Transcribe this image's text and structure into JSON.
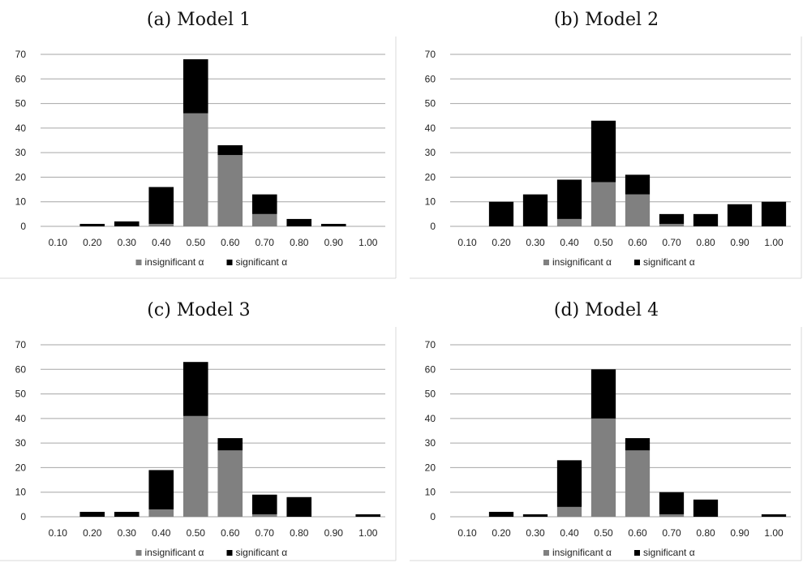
{
  "colors": {
    "insignificant": "#808080",
    "significant": "#000000",
    "grid": "#a6a6a6",
    "border": "#d9d9d9"
  },
  "legend": {
    "insignificant": "insignificant α",
    "significant": "significant α"
  },
  "chart_data": [
    {
      "type": "bar",
      "title": "(a) Model 1",
      "stacked": true,
      "categories": [
        "0.10",
        "0.20",
        "0.30",
        "0.40",
        "0.50",
        "0.60",
        "0.70",
        "0.80",
        "0.90",
        "1.00"
      ],
      "ylim": [
        0,
        70
      ],
      "yticks": [
        0,
        10,
        20,
        30,
        40,
        50,
        60,
        70
      ],
      "grid": true,
      "legend_position": "bottom",
      "series": [
        {
          "name": "insignificant α",
          "values": [
            0,
            0,
            0,
            1,
            46,
            29,
            5,
            0,
            0,
            0
          ]
        },
        {
          "name": "significant α",
          "values": [
            0,
            1,
            2,
            15,
            22,
            4,
            8,
            3,
            1,
            0
          ]
        }
      ]
    },
    {
      "type": "bar",
      "title": "(b) Model 2",
      "stacked": true,
      "categories": [
        "0.10",
        "0.20",
        "0.30",
        "0.40",
        "0.50",
        "0.60",
        "0.70",
        "0.80",
        "0.90",
        "1.00"
      ],
      "ylim": [
        0,
        70
      ],
      "yticks": [
        0,
        10,
        20,
        30,
        40,
        50,
        60,
        70
      ],
      "grid": true,
      "legend_position": "bottom",
      "series": [
        {
          "name": "insignificant α",
          "values": [
            0,
            0,
            0,
            3,
            18,
            13,
            1,
            0,
            0,
            0
          ]
        },
        {
          "name": "significant α",
          "values": [
            0,
            10,
            13,
            16,
            25,
            8,
            4,
            5,
            9,
            10
          ]
        }
      ]
    },
    {
      "type": "bar",
      "title": "(c) Model 3",
      "stacked": true,
      "categories": [
        "0.10",
        "0.20",
        "0.30",
        "0.40",
        "0.50",
        "0.60",
        "0.70",
        "0.80",
        "0.90",
        "1.00"
      ],
      "ylim": [
        0,
        70
      ],
      "yticks": [
        0,
        10,
        20,
        30,
        40,
        50,
        60,
        70
      ],
      "grid": true,
      "legend_position": "bottom",
      "series": [
        {
          "name": "insignificant α",
          "values": [
            0,
            0,
            0,
            3,
            41,
            27,
            1,
            0,
            0,
            0
          ]
        },
        {
          "name": "significant α",
          "values": [
            0,
            2,
            2,
            16,
            22,
            5,
            8,
            8,
            0,
            1
          ]
        }
      ]
    },
    {
      "type": "bar",
      "title": "(d) Model 4",
      "stacked": true,
      "categories": [
        "0.10",
        "0.20",
        "0.30",
        "0.40",
        "0.50",
        "0.60",
        "0.70",
        "0.80",
        "0.90",
        "1.00"
      ],
      "ylim": [
        0,
        70
      ],
      "yticks": [
        0,
        10,
        20,
        30,
        40,
        50,
        60,
        70
      ],
      "grid": true,
      "legend_position": "bottom",
      "series": [
        {
          "name": "insignificant α",
          "values": [
            0,
            0,
            0,
            4,
            40,
            27,
            1,
            0,
            0,
            0
          ]
        },
        {
          "name": "significant α",
          "values": [
            0,
            2,
            1,
            19,
            20,
            5,
            9,
            7,
            0,
            1
          ]
        }
      ]
    }
  ]
}
